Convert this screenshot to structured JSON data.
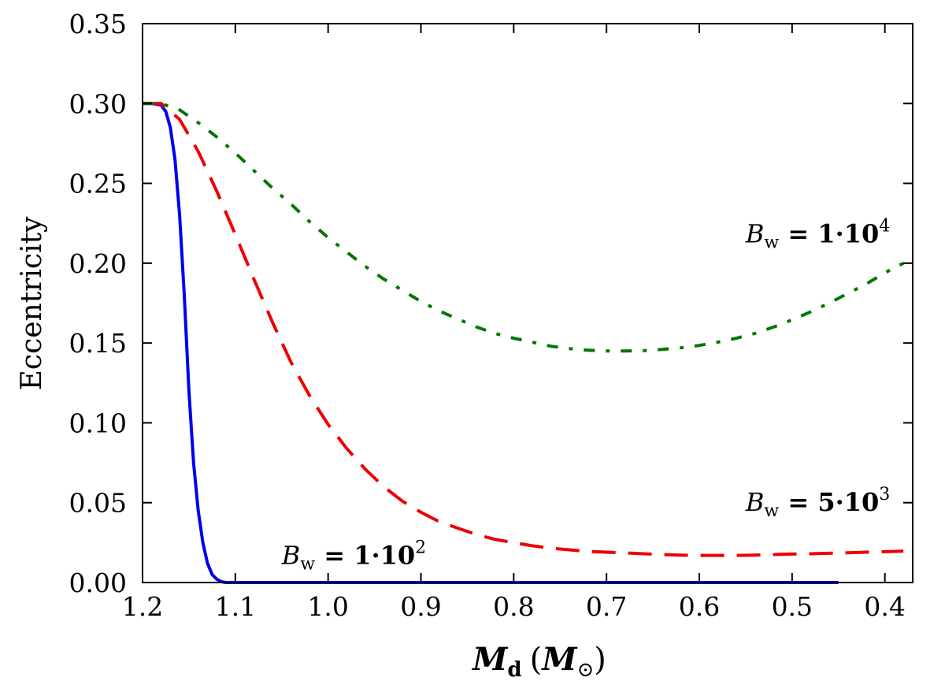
{
  "chart_data": {
    "type": "line",
    "xlabel": {
      "main": "M",
      "sub": "d",
      "paren_open": "(",
      "paren_main": "M",
      "paren_sub": "⊙",
      "paren_close": ")"
    },
    "ylabel": "Eccentricity",
    "xlim": [
      1.2,
      0.37
    ],
    "ylim": [
      0,
      0.35
    ],
    "x_inverted": true,
    "grid": false,
    "x_ticks": [
      1.2,
      1.1,
      1.0,
      0.9,
      0.8,
      0.7,
      0.6,
      0.5,
      0.4
    ],
    "x_tick_labels": [
      "1.2",
      "1.1",
      "1.0",
      "0.9",
      "0.8",
      "0.7",
      "0.6",
      "0.5",
      "0.4"
    ],
    "y_ticks": [
      0,
      0.05,
      0.1,
      0.15,
      0.2,
      0.25,
      0.3,
      0.35
    ],
    "y_tick_labels": [
      "0.00",
      "0.05",
      "0.10",
      "0.15",
      "0.20",
      "0.25",
      "0.30",
      "0.35"
    ],
    "series": [
      {
        "color": "#0000ee",
        "style": "solid",
        "x": [
          1.2,
          1.19,
          1.18,
          1.175,
          1.17,
          1.165,
          1.16,
          1.155,
          1.15,
          1.145,
          1.14,
          1.135,
          1.13,
          1.125,
          1.12,
          1.115,
          1.11,
          1.1,
          1.0,
          0.9,
          0.8,
          0.7,
          0.6,
          0.5,
          0.45
        ],
        "y": [
          0.3,
          0.3,
          0.299,
          0.295,
          0.285,
          0.265,
          0.23,
          0.18,
          0.12,
          0.075,
          0.045,
          0.025,
          0.012,
          0.005,
          0.002,
          0.0005,
          0,
          0,
          0,
          0,
          0,
          0,
          0,
          0,
          0
        ]
      },
      {
        "color": "#ee0000",
        "style": "dashed",
        "x": [
          1.2,
          1.18,
          1.16,
          1.14,
          1.12,
          1.1,
          1.08,
          1.06,
          1.04,
          1.02,
          1.0,
          0.98,
          0.96,
          0.94,
          0.92,
          0.9,
          0.88,
          0.86,
          0.84,
          0.82,
          0.8,
          0.78,
          0.76,
          0.74,
          0.72,
          0.7,
          0.68,
          0.66,
          0.64,
          0.62,
          0.6,
          0.58,
          0.56,
          0.54,
          0.52,
          0.5,
          0.48,
          0.46,
          0.44,
          0.42,
          0.4,
          0.38
        ],
        "y": [
          0.3,
          0.3,
          0.29,
          0.27,
          0.245,
          0.218,
          0.19,
          0.163,
          0.138,
          0.117,
          0.099,
          0.084,
          0.071,
          0.06,
          0.051,
          0.044,
          0.038,
          0.034,
          0.03,
          0.027,
          0.025,
          0.023,
          0.0215,
          0.0205,
          0.0195,
          0.019,
          0.0185,
          0.018,
          0.0175,
          0.0172,
          0.017,
          0.017,
          0.017,
          0.0172,
          0.0175,
          0.0178,
          0.018,
          0.0183,
          0.0186,
          0.019,
          0.0193,
          0.0197
        ]
      },
      {
        "color": "#007700",
        "style": "dashdot",
        "x": [
          1.2,
          1.18,
          1.16,
          1.14,
          1.12,
          1.1,
          1.08,
          1.06,
          1.04,
          1.02,
          1.0,
          0.98,
          0.96,
          0.94,
          0.92,
          0.9,
          0.88,
          0.86,
          0.84,
          0.82,
          0.8,
          0.78,
          0.76,
          0.74,
          0.72,
          0.7,
          0.68,
          0.66,
          0.64,
          0.62,
          0.6,
          0.58,
          0.56,
          0.54,
          0.52,
          0.5,
          0.48,
          0.46,
          0.44,
          0.42,
          0.4,
          0.38
        ],
        "y": [
          0.3,
          0.3,
          0.296,
          0.288,
          0.279,
          0.269,
          0.258,
          0.247,
          0.237,
          0.226,
          0.216,
          0.207,
          0.198,
          0.19,
          0.183,
          0.176,
          0.17,
          0.165,
          0.16,
          0.156,
          0.153,
          0.1505,
          0.148,
          0.1465,
          0.1455,
          0.145,
          0.145,
          0.1452,
          0.146,
          0.147,
          0.1485,
          0.1505,
          0.153,
          0.156,
          0.16,
          0.1645,
          0.1695,
          0.175,
          0.181,
          0.187,
          0.194,
          0.2
        ]
      }
    ],
    "annotations": [
      {
        "base": "B",
        "sub": "w",
        "eq": " = 1·10",
        "sup": "4",
        "at_x": 0.55,
        "at_y": 0.213
      },
      {
        "base": "B",
        "sub": "w",
        "eq": " = 5·10",
        "sup": "3",
        "at_x": 0.55,
        "at_y": 0.045
      },
      {
        "base": "B",
        "sub": "w",
        "eq": " = 1·10",
        "sup": "2",
        "at_x": 1.05,
        "at_y": 0.0115
      }
    ]
  }
}
